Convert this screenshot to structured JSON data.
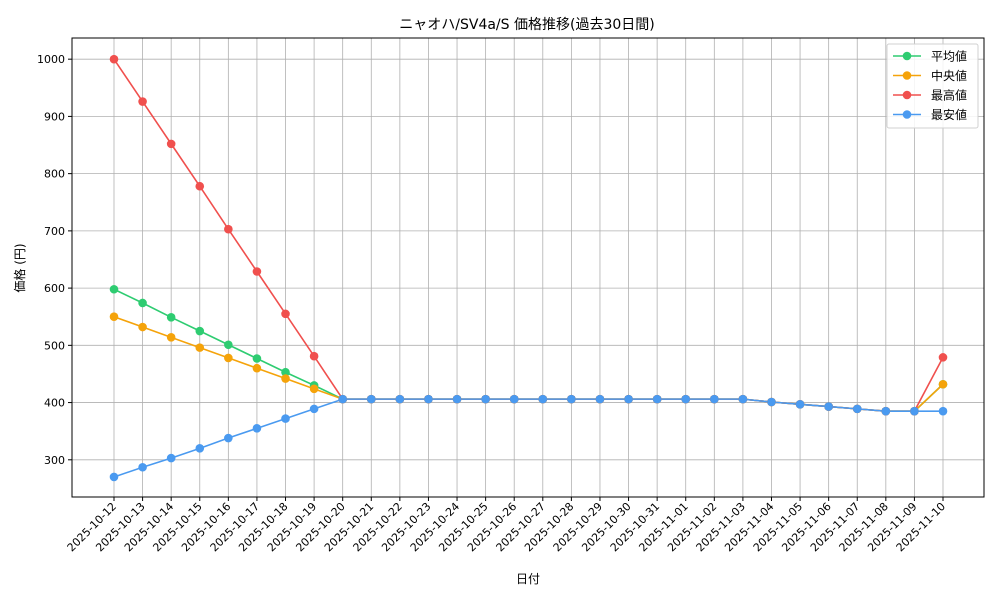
{
  "chart_data": {
    "type": "line",
    "title": "ニャオハ/SV4a/S 価格推移(過去30日間)",
    "xlabel": "日付",
    "ylabel": "価格 (円)",
    "x": [
      "2025-10-12",
      "2025-10-13",
      "2025-10-14",
      "2025-10-15",
      "2025-10-16",
      "2025-10-17",
      "2025-10-18",
      "2025-10-19",
      "2025-10-20",
      "2025-10-21",
      "2025-10-22",
      "2025-10-23",
      "2025-10-24",
      "2025-10-25",
      "2025-10-26",
      "2025-10-27",
      "2025-10-28",
      "2025-10-29",
      "2025-10-30",
      "2025-10-31",
      "2025-11-01",
      "2025-11-02",
      "2025-11-03",
      "2025-11-04",
      "2025-11-05",
      "2025-11-06",
      "2025-11-07",
      "2025-11-08",
      "2025-11-09",
      "2025-11-10"
    ],
    "ylim": [
      235,
      1037
    ],
    "yticks": [
      300,
      400,
      500,
      600,
      700,
      800,
      900,
      1000
    ],
    "grid": true,
    "legend_position": "top-right",
    "series": [
      {
        "name": "平均値",
        "color": "#2ecc71",
        "values": [
          598,
          574,
          549,
          525,
          501,
          477,
          453,
          430,
          406,
          406,
          406,
          406,
          406,
          406,
          406,
          406,
          406,
          406,
          406,
          406,
          406,
          406,
          406,
          401,
          397,
          393,
          389,
          385,
          385,
          432
        ]
      },
      {
        "name": "中央値",
        "color": "#f5a30a",
        "values": [
          550,
          532,
          514,
          496,
          478,
          460,
          442,
          424,
          406,
          406,
          406,
          406,
          406,
          406,
          406,
          406,
          406,
          406,
          406,
          406,
          406,
          406,
          406,
          401,
          397,
          393,
          389,
          385,
          385,
          432
        ]
      },
      {
        "name": "最高値",
        "color": "#f0504e",
        "values": [
          1000,
          926,
          852,
          778,
          703,
          629,
          555,
          481,
          406,
          406,
          406,
          406,
          406,
          406,
          406,
          406,
          406,
          406,
          406,
          406,
          406,
          406,
          406,
          401,
          397,
          393,
          389,
          385,
          385,
          479
        ]
      },
      {
        "name": "最安値",
        "color": "#4a9af0",
        "values": [
          270,
          287,
          303,
          320,
          338,
          355,
          372,
          389,
          406,
          406,
          406,
          406,
          406,
          406,
          406,
          406,
          406,
          406,
          406,
          406,
          406,
          406,
          406,
          401,
          397,
          393,
          389,
          385,
          385,
          385
        ]
      }
    ]
  }
}
